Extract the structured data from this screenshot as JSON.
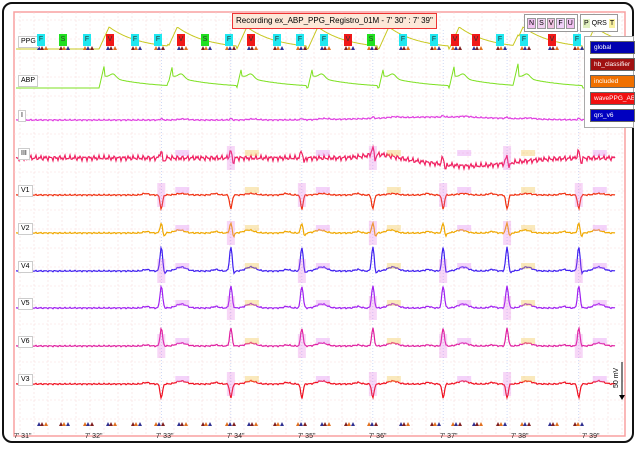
{
  "title": "Recording ex_ABP_PPG_Registro_01M - 7' 30\" : 7' 39\"",
  "leads": [
    "PPG",
    "ABP",
    "I",
    "III",
    "V1",
    "V2",
    "V4",
    "V5",
    "V6",
    "V3"
  ],
  "lead_colors": [
    "#c8c820",
    "#7de020",
    "#e040e0",
    "#f02060",
    "#f03010",
    "#f0a800",
    "#4020f0",
    "#a020f0",
    "#e020a0",
    "#f01020"
  ],
  "beat_labels": [
    "F",
    "S",
    "F",
    "V",
    "F",
    "F",
    "V",
    "S",
    "F",
    "V",
    "F",
    "F",
    "F",
    "V",
    "S",
    "F",
    "F",
    "V",
    "V",
    "F",
    "F",
    "V",
    "F"
  ],
  "beat_colors": {
    "F": "#20e8f0",
    "S": "#20e020",
    "V": "#f01818"
  },
  "class_legend": [
    "N",
    "S",
    "V",
    "F",
    "U"
  ],
  "wave_legend": [
    "P",
    "QRS",
    "T"
  ],
  "layers": [
    {
      "label": "global",
      "color": "#0000b0"
    },
    {
      "label": "hb_classifier",
      "color": "#a01010"
    },
    {
      "label": "included",
      "color": "#f07000"
    },
    {
      "label": "wavePPG_ABP",
      "color": "#f01010"
    },
    {
      "label": "qrs_v6",
      "color": "#0000c0"
    }
  ],
  "time_ticks": [
    "7' 31\"",
    "7' 32\"",
    "7' 33\"",
    "7' 34\"",
    "7' 35\"",
    "7' 36\"",
    "7' 37\"",
    "7' 38\"",
    "7' 39\""
  ],
  "qrs_times_s": [
    451.99,
    452.97,
    453.97,
    454.97,
    455.96,
    456.86,
    457.87,
    458.86
  ],
  "scale_label": "50 mV"
}
